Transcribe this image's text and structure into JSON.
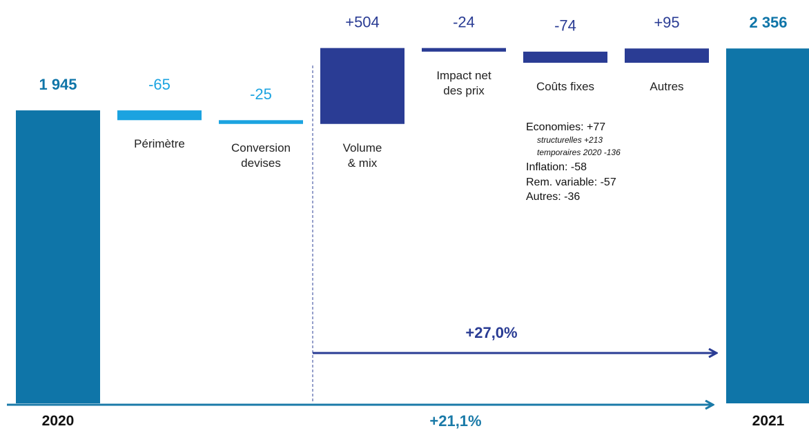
{
  "chart_data": {
    "type": "waterfall",
    "categories": [
      "2020",
      "Périmètre",
      "Conversion devises",
      "Volume & mix",
      "Impact net des prix",
      "Coûts fixes",
      "Autres",
      "2021"
    ],
    "values": [
      1945,
      -65,
      -25,
      504,
      -24,
      -74,
      95,
      2356
    ],
    "value_labels": [
      "1 945",
      "-65",
      "-25",
      "+504",
      "-24",
      "-74",
      "+95",
      "2 356"
    ],
    "is_total": [
      true,
      false,
      false,
      false,
      false,
      false,
      false,
      true
    ],
    "colors": [
      "#0f75a8",
      "#1ba3e0",
      "#1ba3e0",
      "#2a3c94",
      "#2a3c94",
      "#2a3c94",
      "#2a3c94",
      "#0f75a8"
    ],
    "ylim": [
      0,
      2600
    ],
    "notes": [
      {
        "text": "Economies: +77",
        "italic": false
      },
      {
        "text": "structurelles +213",
        "italic": true
      },
      {
        "text": "temporaires 2020 -136",
        "italic": true
      },
      {
        "text": "Inflation: -58",
        "italic": false
      },
      {
        "text": "Rem. variable: -57",
        "italic": false
      },
      {
        "text": "Autres: -36",
        "italic": false
      }
    ],
    "annotations": [
      "+27,0%",
      "+21,1%"
    ]
  }
}
